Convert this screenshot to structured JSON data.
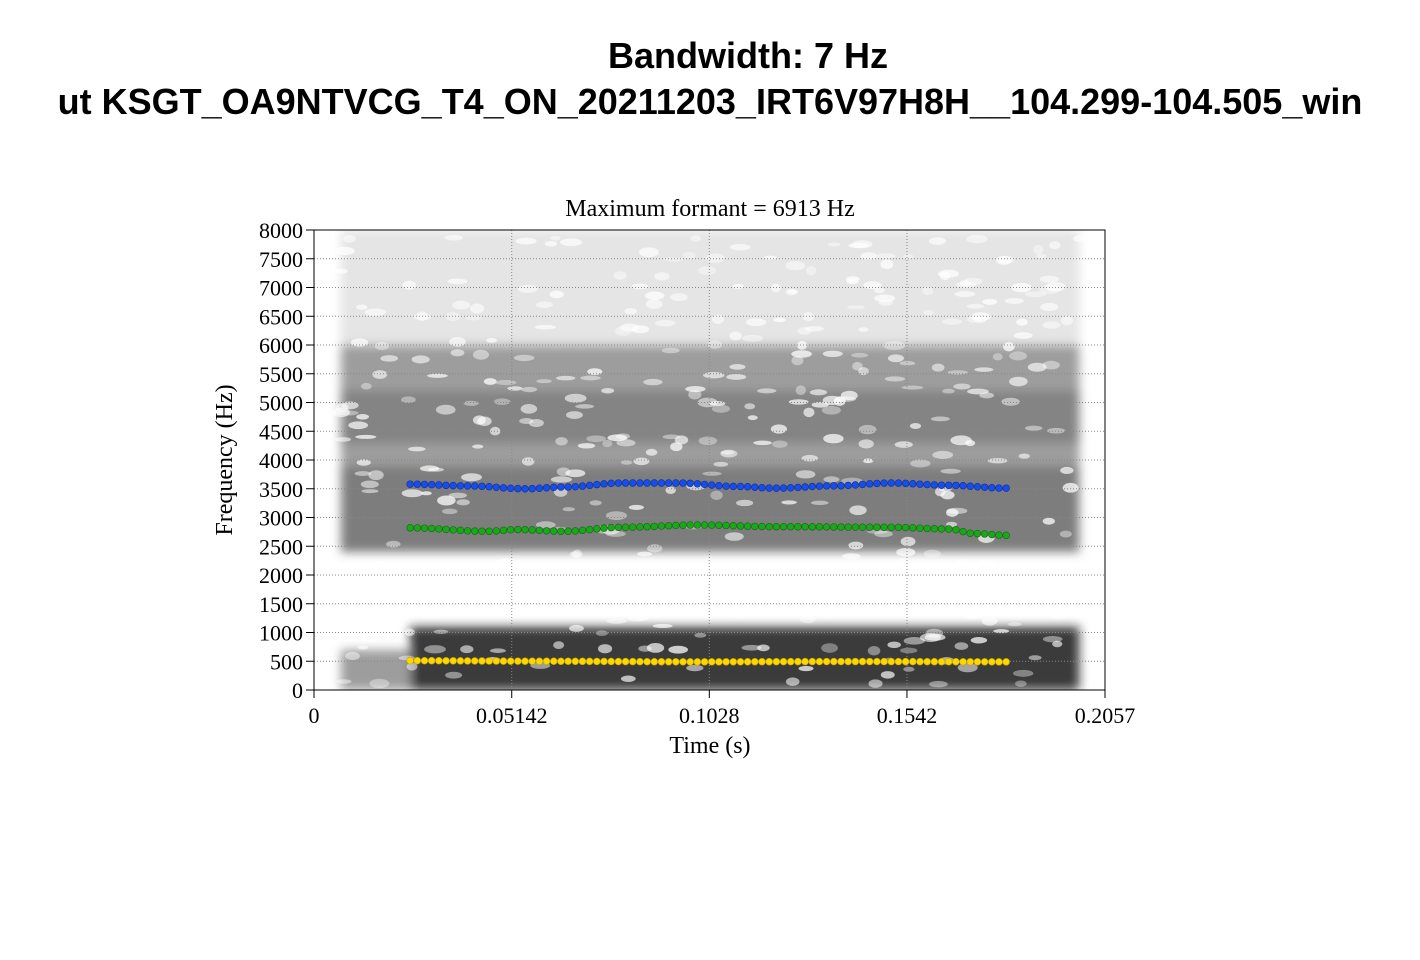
{
  "figure": {
    "title_line1": "Bandwidth: 7 Hz",
    "title_line2": "ut KSGT_OA9NTVCG_T4_ON_20211203_IRT6V97H8H__104.299-104.505_win"
  },
  "chart_data": {
    "type": "scatter",
    "title": "Maximum formant  =  6913 Hz",
    "xlabel": "Time (s)",
    "ylabel": "Frequency (Hz)",
    "xlim": [
      0,
      0.2057
    ],
    "ylim": [
      0,
      8000
    ],
    "x_ticks": [
      0,
      0.05142,
      0.1028,
      0.1542,
      0.2057
    ],
    "x_tick_labels": [
      "0",
      "0.05142",
      "0.1028",
      "0.1542",
      "0.2057"
    ],
    "y_ticks": [
      0,
      500,
      1000,
      1500,
      2000,
      2500,
      3000,
      3500,
      4000,
      4500,
      5000,
      5500,
      6000,
      6500,
      7000,
      7500,
      8000
    ],
    "y_tick_labels": [
      "0",
      "500",
      "1000",
      "1500",
      "2000",
      "2500",
      "3000",
      "3500",
      "4000",
      "4500",
      "5000",
      "5500",
      "6000",
      "6500",
      "7000",
      "7500",
      "8000"
    ],
    "grid": true,
    "background": "grayscale spectrogram",
    "spectrogram_time_range": [
      0.007,
      0.199
    ],
    "formant_time_range": [
      0.025,
      0.18
    ],
    "points_per_track": 84,
    "series": [
      {
        "color": "#ffd700",
        "keypoints": [
          {
            "t": 0.025,
            "f": 510
          },
          {
            "t": 0.06,
            "f": 500
          },
          {
            "t": 0.1,
            "f": 490
          },
          {
            "t": 0.14,
            "f": 495
          },
          {
            "t": 0.18,
            "f": 490
          }
        ]
      },
      {
        "color": "#1ea51e",
        "keypoints": [
          {
            "t": 0.025,
            "f": 2820
          },
          {
            "t": 0.045,
            "f": 2760
          },
          {
            "t": 0.053,
            "f": 2790
          },
          {
            "t": 0.065,
            "f": 2760
          },
          {
            "t": 0.08,
            "f": 2830
          },
          {
            "t": 0.1,
            "f": 2870
          },
          {
            "t": 0.12,
            "f": 2840
          },
          {
            "t": 0.15,
            "f": 2830
          },
          {
            "t": 0.165,
            "f": 2800
          },
          {
            "t": 0.172,
            "f": 2720
          },
          {
            "t": 0.18,
            "f": 2690
          }
        ]
      },
      {
        "color": "#1a4de6",
        "keypoints": [
          {
            "t": 0.025,
            "f": 3580
          },
          {
            "t": 0.04,
            "f": 3550
          },
          {
            "t": 0.055,
            "f": 3500
          },
          {
            "t": 0.065,
            "f": 3530
          },
          {
            "t": 0.08,
            "f": 3600
          },
          {
            "t": 0.095,
            "f": 3600
          },
          {
            "t": 0.11,
            "f": 3540
          },
          {
            "t": 0.12,
            "f": 3510
          },
          {
            "t": 0.135,
            "f": 3550
          },
          {
            "t": 0.15,
            "f": 3600
          },
          {
            "t": 0.165,
            "f": 3560
          },
          {
            "t": 0.18,
            "f": 3510
          }
        ]
      }
    ],
    "spectrogram_bands": [
      {
        "f_lo": 0,
        "f_hi": 1100,
        "t_lo": 0.025,
        "t_hi": 0.199,
        "darkness": 0.9
      },
      {
        "f_lo": 0,
        "f_hi": 700,
        "t_lo": 0.007,
        "t_hi": 0.025,
        "darkness": 0.45
      },
      {
        "f_lo": 2400,
        "f_hi": 3900,
        "t_lo": 0.007,
        "t_hi": 0.199,
        "darkness": 0.6
      },
      {
        "f_lo": 4300,
        "f_hi": 5200,
        "t_lo": 0.007,
        "t_hi": 0.199,
        "darkness": 0.75
      },
      {
        "f_lo": 3900,
        "f_hi": 6000,
        "t_lo": 0.007,
        "t_hi": 0.199,
        "darkness": 0.45
      },
      {
        "f_lo": 6000,
        "f_hi": 8000,
        "t_lo": 0.007,
        "t_hi": 0.199,
        "darkness": 0.12
      }
    ]
  }
}
